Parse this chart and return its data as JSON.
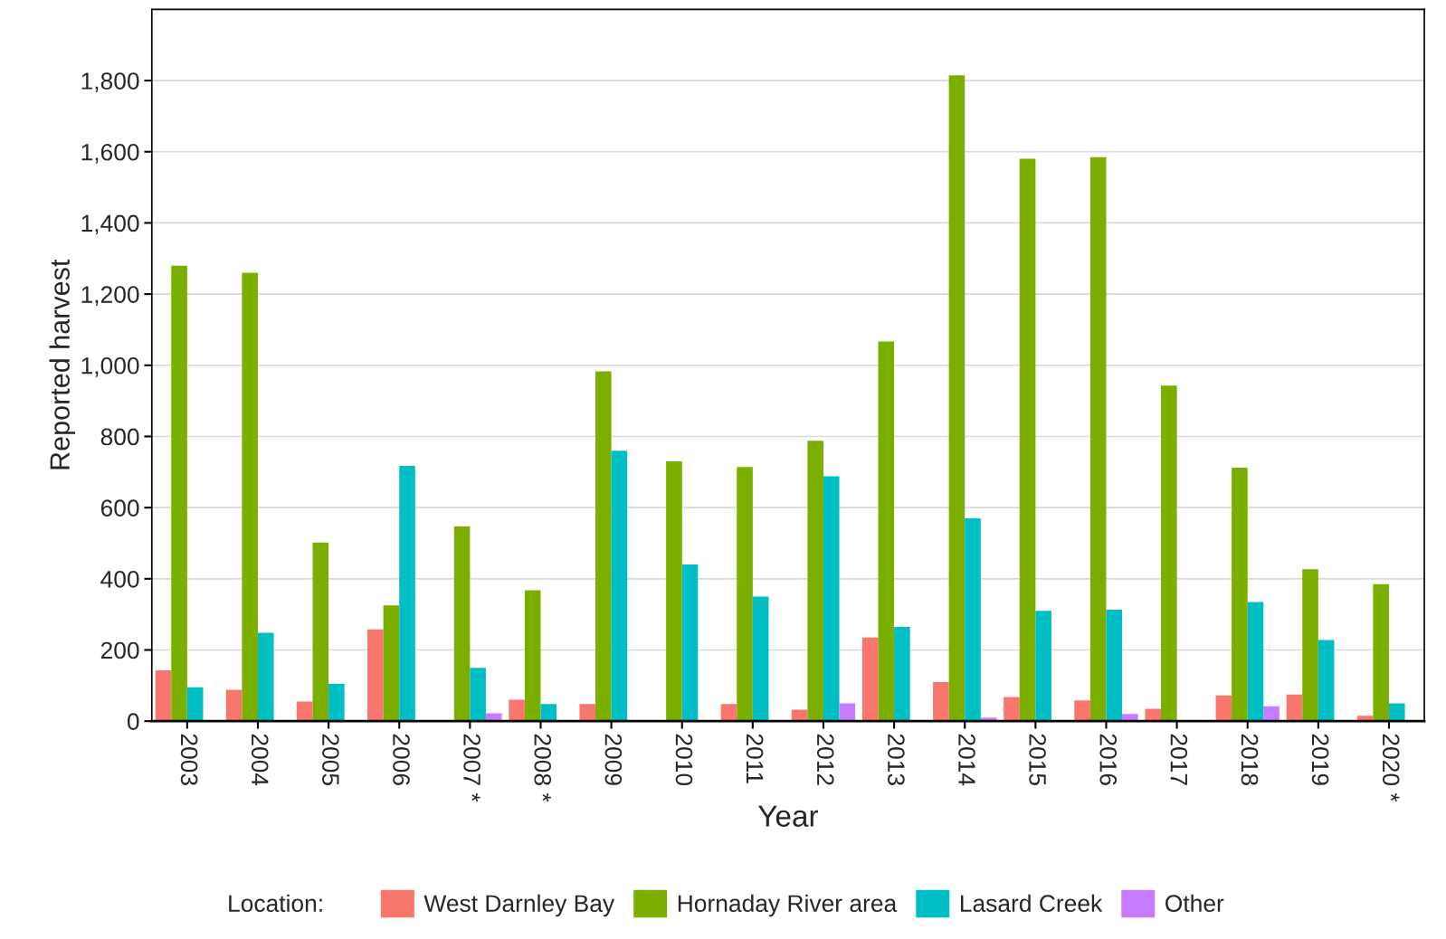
{
  "chart_data": {
    "type": "bar",
    "xlabel": "Year",
    "ylabel": "Reported harvest",
    "legend_title": "Location:",
    "legend": "bottom",
    "grid": "y",
    "categories": [
      "2003",
      "2004",
      "2005",
      "2006",
      "2007 *",
      "2008 *",
      "2009",
      "2010",
      "2011",
      "2012",
      "2013",
      "2014",
      "2015",
      "2016",
      "2017",
      "2018",
      "2019",
      "2020 *"
    ],
    "series": [
      {
        "name": "West Darnley Bay",
        "color": "#f8766d",
        "values": [
          143,
          88,
          55,
          258,
          null,
          60,
          48,
          null,
          48,
          32,
          235,
          110,
          68,
          58,
          35,
          72,
          75,
          15
        ]
      },
      {
        "name": "Hornaday River area",
        "color": "#7cae00",
        "values": [
          1280,
          1260,
          502,
          325,
          547,
          368,
          983,
          730,
          714,
          788,
          1067,
          1815,
          1580,
          1585,
          943,
          712,
          427,
          385
        ]
      },
      {
        "name": "Lasard Creek",
        "color": "#00bfc4",
        "values": [
          95,
          248,
          105,
          717,
          150,
          48,
          760,
          440,
          350,
          688,
          265,
          570,
          310,
          313,
          null,
          335,
          228,
          50
        ]
      },
      {
        "name": "Other",
        "color": "#c77cff",
        "values": [
          null,
          null,
          null,
          null,
          22,
          null,
          null,
          null,
          null,
          50,
          null,
          10,
          null,
          20,
          null,
          42,
          null,
          null
        ]
      }
    ],
    "ylim": [
      0,
      2000
    ],
    "yticks": [
      0,
      {
        "value": 200,
        "label": "200"
      },
      {
        "value": 400,
        "label": "400"
      },
      {
        "value": 600,
        "label": "600"
      },
      {
        "value": 800,
        "label": "800"
      },
      {
        "value": 1000,
        "label": "1,000"
      },
      {
        "value": 1200,
        "label": "1,200"
      },
      {
        "value": 1400,
        "label": "1,400"
      },
      {
        "value": 1600,
        "label": "1,600"
      },
      {
        "value": 1800,
        "label": "1,800"
      }
    ]
  }
}
